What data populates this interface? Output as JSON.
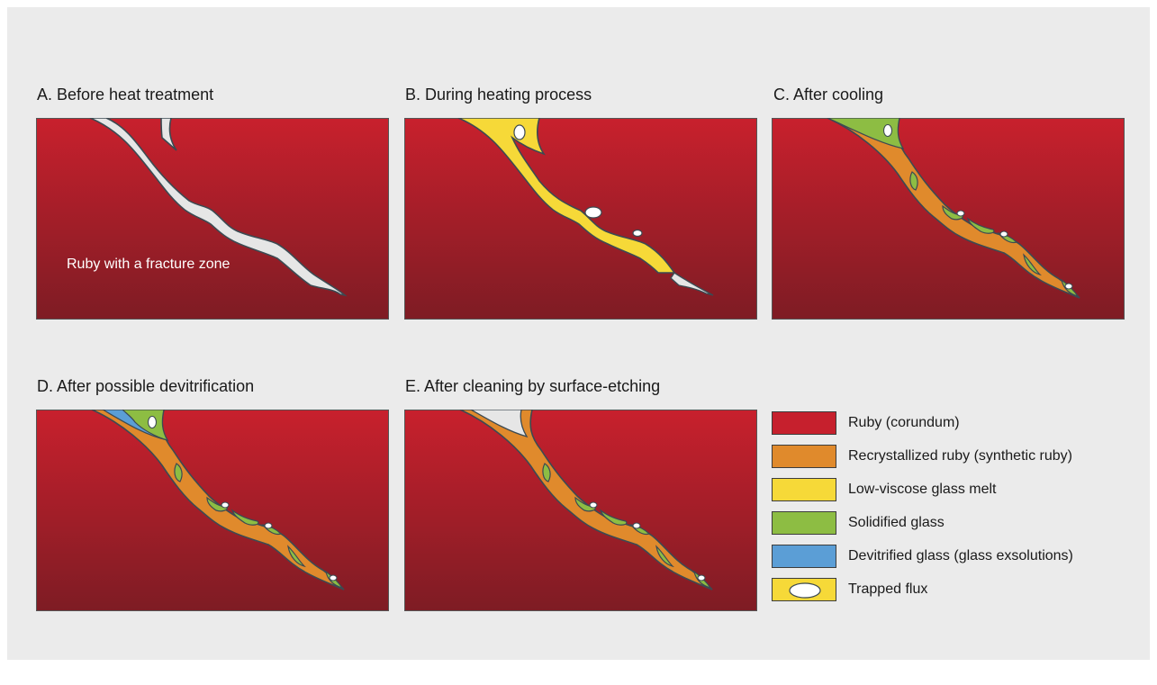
{
  "panels": [
    {
      "id": "A",
      "title": "A. Before heat treatment",
      "annotation": "Ruby with a fracture zone"
    },
    {
      "id": "B",
      "title": "B. During heating process"
    },
    {
      "id": "C",
      "title": "C. After cooling"
    },
    {
      "id": "D",
      "title": "D. After possible devitrification"
    },
    {
      "id": "E",
      "title": "E. After cleaning by surface-etching"
    }
  ],
  "legend": [
    {
      "label": "Ruby (corundum)",
      "color": "#c6202d",
      "icon": "ruby-swatch"
    },
    {
      "label": "Recrystallized ruby (synthetic ruby)",
      "color": "#e08a2c",
      "icon": "recrystallized-swatch"
    },
    {
      "label": "Low-viscose glass melt",
      "color": "#f6d938",
      "icon": "glass-melt-swatch"
    },
    {
      "label": "Solidified glass",
      "color": "#8dbd43",
      "icon": "solidified-glass-swatch"
    },
    {
      "label": "Devitrified glass (glass exsolutions)",
      "color": "#5b9ed6",
      "icon": "devitrified-glass-swatch"
    },
    {
      "label": "Trapped flux",
      "color": "#f6d938",
      "icon": "trapped-flux-swatch"
    }
  ],
  "colors": {
    "background": "#ebebeb",
    "ruby_top": "#c8202d",
    "ruby_bottom": "#7e1c24",
    "fracture": "#e6e6e6",
    "outline": "#3c4a52",
    "recrystallized": "#e08a2c",
    "glass_melt": "#f6d938",
    "solidified_glass": "#8dbd43",
    "devitrified_glass": "#5b9ed6",
    "flux": "#ffffff"
  }
}
